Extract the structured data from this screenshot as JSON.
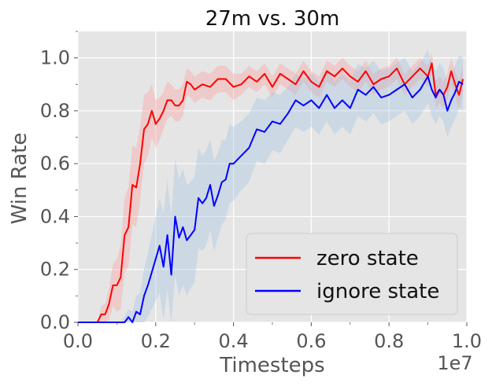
{
  "chart_data": {
    "type": "line",
    "title": "27m vs. 30m",
    "xlabel": "Timesteps",
    "ylabel": "Win Rate",
    "x_offset_label": "1e7",
    "xlim": [
      0.0,
      1.0
    ],
    "ylim": [
      0.0,
      1.1
    ],
    "x_ticks": [
      "0.0",
      "0.2",
      "0.4",
      "0.6",
      "0.8",
      "1.0"
    ],
    "y_ticks": [
      "0.0",
      "0.2",
      "0.4",
      "0.6",
      "0.8",
      "1.0"
    ],
    "grid": true,
    "legend_position": "lower-right",
    "series": [
      {
        "name": "zero state",
        "color": "#ff0000",
        "band_color": "#ff9999",
        "x": [
          0,
          0.05,
          0.06,
          0.07,
          0.08,
          0.09,
          0.1,
          0.11,
          0.12,
          0.13,
          0.14,
          0.15,
          0.16,
          0.17,
          0.18,
          0.19,
          0.2,
          0.21,
          0.22,
          0.23,
          0.24,
          0.25,
          0.26,
          0.27,
          0.28,
          0.29,
          0.3,
          0.32,
          0.34,
          0.36,
          0.38,
          0.4,
          0.42,
          0.44,
          0.46,
          0.48,
          0.5,
          0.52,
          0.54,
          0.56,
          0.58,
          0.6,
          0.62,
          0.64,
          0.66,
          0.68,
          0.7,
          0.72,
          0.74,
          0.76,
          0.78,
          0.8,
          0.82,
          0.84,
          0.86,
          0.88,
          0.9,
          0.91,
          0.92,
          0.93,
          0.94,
          0.95,
          0.96,
          0.97,
          0.98,
          0.99
        ],
        "values": [
          0.0,
          0.0,
          0.03,
          0.03,
          0.07,
          0.14,
          0.14,
          0.17,
          0.33,
          0.36,
          0.52,
          0.51,
          0.6,
          0.73,
          0.75,
          0.8,
          0.75,
          0.77,
          0.8,
          0.84,
          0.84,
          0.82,
          0.82,
          0.84,
          0.91,
          0.9,
          0.88,
          0.9,
          0.89,
          0.92,
          0.92,
          0.89,
          0.9,
          0.93,
          0.91,
          0.94,
          0.89,
          0.94,
          0.92,
          0.9,
          0.95,
          0.91,
          0.89,
          0.95,
          0.93,
          0.96,
          0.93,
          0.91,
          0.95,
          0.9,
          0.92,
          0.93,
          0.96,
          0.9,
          0.93,
          0.96,
          0.93,
          0.98,
          0.86,
          0.88,
          0.86,
          0.89,
          0.95,
          0.9,
          0.86,
          0.92
        ],
        "band_halfwidth": [
          0.0,
          0.0,
          0.03,
          0.04,
          0.06,
          0.08,
          0.1,
          0.12,
          0.14,
          0.15,
          0.15,
          0.15,
          0.14,
          0.13,
          0.12,
          0.1,
          0.09,
          0.08,
          0.07,
          0.07,
          0.06,
          0.06,
          0.06,
          0.06,
          0.05,
          0.05,
          0.05,
          0.05,
          0.05,
          0.05,
          0.05,
          0.05,
          0.04,
          0.04,
          0.04,
          0.04,
          0.04,
          0.04,
          0.04,
          0.04,
          0.04,
          0.04,
          0.04,
          0.04,
          0.04,
          0.04,
          0.04,
          0.04,
          0.04,
          0.04,
          0.04,
          0.04,
          0.04,
          0.04,
          0.04,
          0.04,
          0.04,
          0.04,
          0.05,
          0.05,
          0.05,
          0.05,
          0.05,
          0.05,
          0.05,
          0.05
        ]
      },
      {
        "name": "ignore state",
        "color": "#0000ff",
        "band_color": "#9fbfdf",
        "x": [
          0,
          0.11,
          0.12,
          0.13,
          0.14,
          0.15,
          0.16,
          0.17,
          0.18,
          0.19,
          0.2,
          0.21,
          0.22,
          0.23,
          0.24,
          0.25,
          0.26,
          0.27,
          0.28,
          0.29,
          0.3,
          0.31,
          0.32,
          0.33,
          0.34,
          0.35,
          0.36,
          0.37,
          0.38,
          0.39,
          0.4,
          0.42,
          0.44,
          0.46,
          0.48,
          0.5,
          0.52,
          0.54,
          0.56,
          0.58,
          0.6,
          0.62,
          0.64,
          0.66,
          0.68,
          0.7,
          0.72,
          0.74,
          0.76,
          0.78,
          0.8,
          0.82,
          0.84,
          0.86,
          0.88,
          0.9,
          0.91,
          0.92,
          0.93,
          0.94,
          0.95,
          0.96,
          0.97,
          0.98,
          0.99
        ],
        "values": [
          0.0,
          0.0,
          0.0,
          0.02,
          0.0,
          0.04,
          0.03,
          0.1,
          0.14,
          0.19,
          0.24,
          0.29,
          0.21,
          0.33,
          0.18,
          0.4,
          0.32,
          0.36,
          0.31,
          0.33,
          0.35,
          0.47,
          0.45,
          0.47,
          0.52,
          0.44,
          0.48,
          0.53,
          0.54,
          0.6,
          0.6,
          0.63,
          0.66,
          0.73,
          0.72,
          0.76,
          0.75,
          0.79,
          0.84,
          0.82,
          0.84,
          0.81,
          0.86,
          0.81,
          0.84,
          0.81,
          0.88,
          0.86,
          0.89,
          0.85,
          0.86,
          0.88,
          0.9,
          0.85,
          0.88,
          0.93,
          0.88,
          0.85,
          0.88,
          0.86,
          0.8,
          0.84,
          0.87,
          0.91,
          0.9
        ],
        "band_halfwidth": [
          0.0,
          0.0,
          0.02,
          0.03,
          0.04,
          0.06,
          0.08,
          0.1,
          0.12,
          0.14,
          0.16,
          0.18,
          0.2,
          0.21,
          0.22,
          0.22,
          0.22,
          0.22,
          0.21,
          0.2,
          0.2,
          0.19,
          0.18,
          0.18,
          0.17,
          0.17,
          0.16,
          0.16,
          0.15,
          0.15,
          0.14,
          0.13,
          0.13,
          0.12,
          0.12,
          0.11,
          0.11,
          0.1,
          0.1,
          0.1,
          0.1,
          0.1,
          0.1,
          0.1,
          0.1,
          0.1,
          0.1,
          0.1,
          0.1,
          0.1,
          0.1,
          0.1,
          0.1,
          0.1,
          0.1,
          0.1,
          0.1,
          0.1,
          0.1,
          0.1,
          0.1,
          0.1,
          0.1,
          0.1,
          0.1
        ]
      }
    ]
  }
}
